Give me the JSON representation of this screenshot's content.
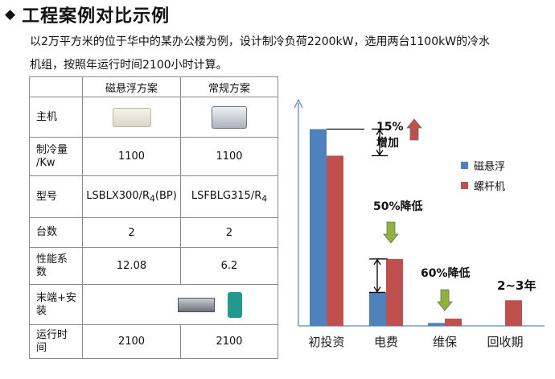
{
  "header": {
    "bullet": "◆",
    "title": "工程案例对比示例"
  },
  "intro": {
    "line1": "以2万平方米的位于华中的某办公楼为例，设计制冷负荷2200kW，选用两台1100kW的冷水",
    "line2": "机组，按照年运行时间2100小时计算。"
  },
  "table": {
    "headers": [
      "",
      "磁悬浮方案",
      "常规方案"
    ],
    "rows": {
      "host": {
        "label": "主机",
        "a_icon": "maglev-chiller-image",
        "b_icon": "screw-chiller-image"
      },
      "capacity": {
        "label1": "制冷量",
        "label2": "/Kw",
        "a": "1100",
        "b": "1100"
      },
      "model": {
        "label": "型号",
        "a_main": "LSBLX300/R",
        "a_sub": "4",
        "a_tail": "(BP)",
        "b_main": "LSFBLG315/R",
        "b_sub": "4"
      },
      "count": {
        "label": "台数",
        "a": "2",
        "b": "2"
      },
      "cop": {
        "label1": "性能系",
        "label2": "数",
        "a": "12.08",
        "b": "6.2"
      },
      "terminal": {
        "label1": "末端+安",
        "label2": "装",
        "icons": [
          "fan-coil-image",
          "pump-image"
        ]
      },
      "runtime": {
        "label1": "运行时",
        "label2": "间",
        "a": "2100",
        "b": "2100"
      }
    }
  },
  "chart_data": {
    "type": "bar",
    "categories": [
      "初投资",
      "电费",
      "维保",
      "回收期"
    ],
    "series": [
      {
        "name": "磁悬浮",
        "color": "#4f81bd",
        "values": [
          100,
          17,
          1.5,
          0
        ]
      },
      {
        "name": "螺杆机",
        "color": "#c0504d",
        "values": [
          86.5,
          34,
          3.7,
          13
        ]
      }
    ],
    "ylim": [
      0,
      110
    ],
    "legend_position": "right",
    "annotations": [
      {
        "text": "15%",
        "text2": "增加",
        "arrow": "up",
        "arrow_color": "#c0504d"
      },
      {
        "text": "50%降低",
        "arrow": "down",
        "arrow_color": "#8db33c"
      },
      {
        "text": "60%降低",
        "arrow": "down",
        "arrow_color": "#8db33c"
      },
      {
        "text": "2~3年"
      }
    ]
  }
}
